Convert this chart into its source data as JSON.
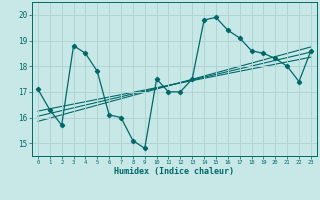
{
  "title": "",
  "xlabel": "Humidex (Indice chaleur)",
  "ylabel": "",
  "bg_color": "#c8e8e8",
  "grid_color": "#b0d4d4",
  "line_color": "#006868",
  "x_data": [
    0,
    1,
    2,
    3,
    4,
    5,
    6,
    7,
    8,
    9,
    10,
    11,
    12,
    13,
    14,
    15,
    16,
    17,
    18,
    19,
    20,
    21,
    22,
    23
  ],
  "y_data": [
    17.1,
    16.3,
    15.7,
    18.8,
    18.5,
    17.8,
    16.1,
    16.0,
    15.1,
    14.8,
    17.5,
    17.0,
    17.0,
    17.5,
    19.8,
    19.9,
    19.4,
    19.1,
    18.6,
    18.5,
    18.3,
    18.0,
    17.4,
    18.6
  ],
  "xlim": [
    -0.5,
    23.5
  ],
  "ylim": [
    14.5,
    20.5
  ],
  "yticks": [
    15,
    16,
    17,
    18,
    19,
    20
  ],
  "xticks": [
    0,
    1,
    2,
    3,
    4,
    5,
    6,
    7,
    8,
    9,
    10,
    11,
    12,
    13,
    14,
    15,
    16,
    17,
    18,
    19,
    20,
    21,
    22,
    23
  ],
  "regression_lines": [
    {
      "x": [
        0,
        23
      ],
      "y": [
        15.85,
        18.75
      ]
    },
    {
      "x": [
        0,
        23
      ],
      "y": [
        16.05,
        18.55
      ]
    },
    {
      "x": [
        0,
        23
      ],
      "y": [
        16.25,
        18.35
      ]
    }
  ]
}
